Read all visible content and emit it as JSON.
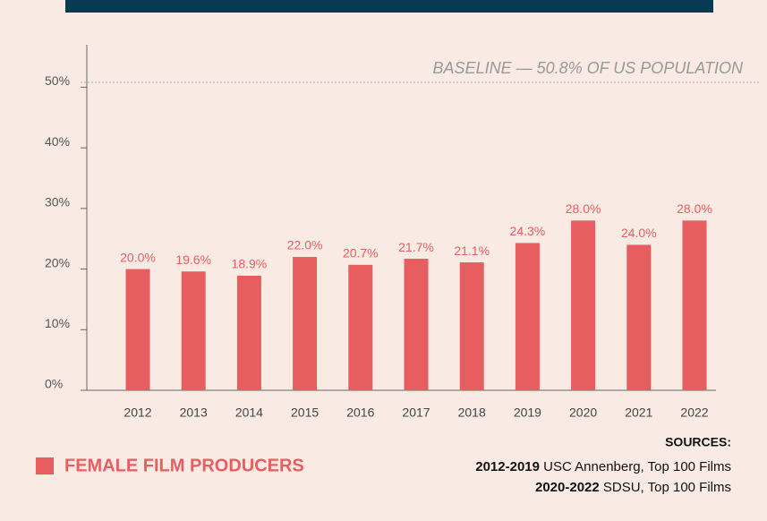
{
  "chart_data": {
    "type": "bar",
    "annotation": "BASELINE — 50.8% OF US POPULATION",
    "baseline": 50.8,
    "categories": [
      "2012",
      "2013",
      "2014",
      "2015",
      "2016",
      "2017",
      "2018",
      "2019",
      "2020",
      "2021",
      "2022"
    ],
    "series": [
      {
        "name": "FEMALE FILM PRODUCERS",
        "color": "#e85d5f",
        "values": [
          20.0,
          19.6,
          18.9,
          22.0,
          20.7,
          21.7,
          21.1,
          24.3,
          28.0,
          24.0,
          28.0
        ],
        "value_labels": [
          "20.0%",
          "19.6%",
          "18.9%",
          "22.0%",
          "20.7%",
          "21.7%",
          "21.1%",
          "24.3%",
          "28.0%",
          "24.0%",
          "28.0%"
        ]
      }
    ],
    "ylim": [
      0,
      57
    ],
    "yticks": [
      {
        "value": 0,
        "label": "0%"
      },
      {
        "value": 10,
        "label": "10%"
      },
      {
        "value": 20,
        "label": "20%"
      },
      {
        "value": 30,
        "label": "30%"
      },
      {
        "value": 40,
        "label": "40%"
      },
      {
        "value": 50,
        "label": "50%"
      }
    ],
    "sources": {
      "title": "SOURCES:",
      "items": [
        {
          "years": "2012-2019",
          "text": " USC Annenberg, Top 100 Films"
        },
        {
          "years": "2020-2022",
          "text": " SDSU, Top 100 Films"
        }
      ]
    }
  }
}
